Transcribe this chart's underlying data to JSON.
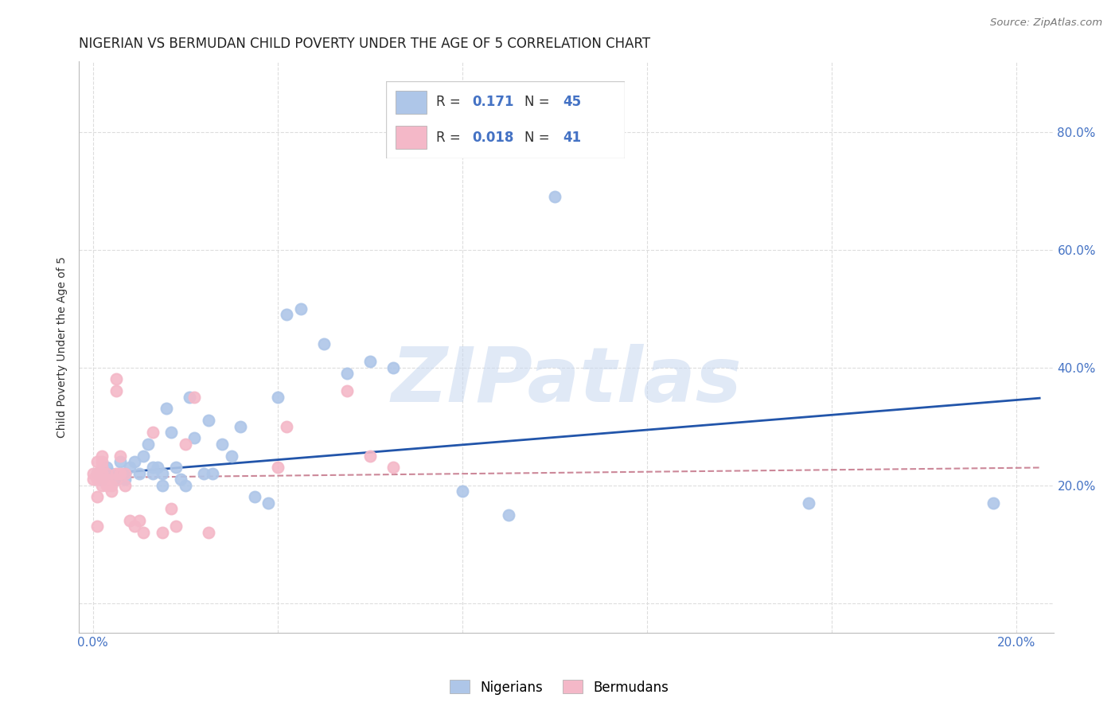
{
  "title": "NIGERIAN VS BERMUDAN CHILD POVERTY UNDER THE AGE OF 5 CORRELATION CHART",
  "source": "Source: ZipAtlas.com",
  "ylabel": "Child Poverty Under the Age of 5",
  "x_ticks": [
    0.0,
    0.04,
    0.08,
    0.12,
    0.16,
    0.2
  ],
  "x_tick_labels": [
    "0.0%",
    "",
    "",
    "",
    "",
    "20.0%"
  ],
  "y_ticks": [
    0.0,
    0.2,
    0.4,
    0.6,
    0.8
  ],
  "y_tick_labels": [
    "",
    "20.0%",
    "40.0%",
    "60.0%",
    "80.0%"
  ],
  "xlim": [
    -0.003,
    0.208
  ],
  "ylim": [
    -0.05,
    0.92
  ],
  "background_color": "#ffffff",
  "grid_color": "#dddddd",
  "nigerian_color": "#aec6e8",
  "bermudan_color": "#f4b8c8",
  "nigerian_line_color": "#2255aa",
  "bermudan_line_color": "#cc8899",
  "legend_R_nigerian": "0.171",
  "legend_N_nigerian": "45",
  "legend_R_bermudan": "0.018",
  "legend_N_bermudan": "41",
  "watermark": "ZIPatlas",
  "watermark_color": "#c8d8f0",
  "nigerian_x": [
    0.001,
    0.002,
    0.003,
    0.004,
    0.005,
    0.006,
    0.007,
    0.007,
    0.008,
    0.009,
    0.01,
    0.011,
    0.012,
    0.013,
    0.013,
    0.014,
    0.015,
    0.015,
    0.016,
    0.017,
    0.018,
    0.019,
    0.02,
    0.021,
    0.022,
    0.024,
    0.025,
    0.026,
    0.028,
    0.03,
    0.032,
    0.035,
    0.038,
    0.04,
    0.042,
    0.045,
    0.05,
    0.055,
    0.06,
    0.065,
    0.08,
    0.09,
    0.1,
    0.155,
    0.195
  ],
  "nigerian_y": [
    0.22,
    0.21,
    0.23,
    0.22,
    0.21,
    0.24,
    0.22,
    0.21,
    0.23,
    0.24,
    0.22,
    0.25,
    0.27,
    0.23,
    0.22,
    0.23,
    0.22,
    0.2,
    0.33,
    0.29,
    0.23,
    0.21,
    0.2,
    0.35,
    0.28,
    0.22,
    0.31,
    0.22,
    0.27,
    0.25,
    0.3,
    0.18,
    0.17,
    0.35,
    0.49,
    0.5,
    0.44,
    0.39,
    0.41,
    0.4,
    0.19,
    0.15,
    0.69,
    0.17,
    0.17
  ],
  "bermudan_x": [
    0.0,
    0.0,
    0.001,
    0.001,
    0.001,
    0.001,
    0.001,
    0.002,
    0.002,
    0.002,
    0.002,
    0.002,
    0.003,
    0.003,
    0.003,
    0.004,
    0.004,
    0.005,
    0.005,
    0.005,
    0.005,
    0.006,
    0.006,
    0.007,
    0.007,
    0.008,
    0.009,
    0.01,
    0.011,
    0.013,
    0.015,
    0.017,
    0.018,
    0.02,
    0.022,
    0.025,
    0.04,
    0.042,
    0.055,
    0.06,
    0.065
  ],
  "bermudan_y": [
    0.21,
    0.22,
    0.13,
    0.18,
    0.21,
    0.22,
    0.24,
    0.22,
    0.2,
    0.23,
    0.24,
    0.25,
    0.22,
    0.2,
    0.21,
    0.2,
    0.19,
    0.22,
    0.21,
    0.38,
    0.36,
    0.25,
    0.22,
    0.22,
    0.2,
    0.14,
    0.13,
    0.14,
    0.12,
    0.29,
    0.12,
    0.16,
    0.13,
    0.27,
    0.35,
    0.12,
    0.23,
    0.3,
    0.36,
    0.25,
    0.23
  ],
  "title_fontsize": 12,
  "axis_label_fontsize": 10,
  "tick_fontsize": 11,
  "legend_fontsize": 12,
  "marker_size": 100,
  "nigerian_trendline_x": [
    0.0,
    0.205
  ],
  "nigerian_trendline_y": [
    0.218,
    0.348
  ],
  "bermudan_trendline_x": [
    0.0,
    0.205
  ],
  "bermudan_trendline_y": [
    0.213,
    0.23
  ]
}
